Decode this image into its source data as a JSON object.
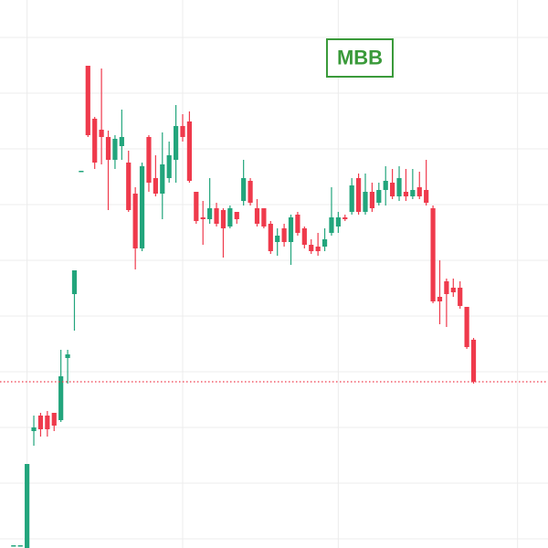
{
  "chart_data": {
    "type": "candlestick",
    "title": "MBB",
    "title_color": "#3a9a3a",
    "up_color": "#22a57c",
    "down_color": "#ef3a4c",
    "grid": true,
    "ylim": [
      0,
      600
    ],
    "yticks": [
      10,
      71,
      132,
      193,
      254,
      315,
      376,
      437,
      498,
      559
    ],
    "xlim": [
      -2,
      79
    ],
    "xticks": [
      2,
      25,
      48,
      74.5
    ],
    "last_price": 182,
    "x": [
      0,
      1,
      2,
      3,
      4,
      5,
      6,
      7,
      8,
      9,
      10,
      11,
      12,
      13,
      14,
      15,
      16,
      17,
      18,
      19,
      20,
      21,
      22,
      23,
      24,
      25,
      26,
      27,
      28,
      29,
      30,
      31,
      32,
      33,
      34,
      35,
      36,
      37,
      38,
      39,
      40,
      41,
      42,
      43,
      44,
      45,
      46,
      47,
      48,
      49,
      50,
      51,
      52,
      53,
      54,
      55,
      56,
      57,
      58,
      59,
      60,
      61,
      62,
      63,
      64,
      65,
      66,
      67,
      68
    ],
    "open": [
      3,
      3,
      0,
      128,
      145,
      145,
      148,
      140,
      208,
      278,
      413,
      528,
      470,
      458,
      450,
      425,
      440,
      422,
      388,
      328,
      450,
      405,
      388,
      405,
      425,
      462,
      467,
      390,
      362,
      360,
      372,
      370,
      352,
      368,
      380,
      402,
      372,
      372,
      355,
      335,
      350,
      335,
      365,
      350,
      332,
      330,
      330,
      345,
      352,
      362,
      368,
      405,
      368,
      390,
      378,
      392,
      400,
      385,
      390,
      385,
      395,
      392,
      372,
      275,
      292,
      285,
      285,
      264,
      228
    ],
    "high": [
      3,
      3,
      92,
      145,
      148,
      150,
      148,
      217,
      217,
      304,
      413,
      528,
      472,
      525,
      457,
      452,
      480,
      435,
      395,
      422,
      452,
      430,
      455,
      445,
      485,
      475,
      478,
      390,
      380,
      405,
      378,
      372,
      375,
      368,
      425,
      405,
      382,
      372,
      358,
      350,
      355,
      365,
      368,
      352,
      338,
      345,
      350,
      395,
      368,
      365,
      405,
      410,
      410,
      400,
      400,
      418,
      415,
      418,
      415,
      415,
      412,
      425,
      375,
      315,
      295,
      295,
      292,
      264,
      230
    ],
    "low": [
      3,
      3,
      0,
      112,
      122,
      122,
      128,
      138,
      180,
      238,
      413,
      450,
      415,
      420,
      370,
      415,
      425,
      368,
      305,
      325,
      390,
      385,
      360,
      400,
      400,
      445,
      400,
      355,
      332,
      355,
      352,
      318,
      350,
      355,
      375,
      375,
      352,
      350,
      322,
      320,
      330,
      310,
      342,
      328,
      322,
      320,
      325,
      342,
      345,
      358,
      365,
      365,
      365,
      368,
      375,
      375,
      382,
      380,
      380,
      382,
      382,
      375,
      268,
      245,
      242,
      275,
      262,
      218,
      180
    ],
    "close": [
      3,
      3,
      92,
      132,
      130,
      130,
      134,
      188,
      212,
      304,
      413,
      452,
      422,
      450,
      425,
      448,
      450,
      370,
      328,
      418,
      400,
      388,
      420,
      430,
      462,
      450,
      402,
      358,
      360,
      372,
      355,
      350,
      372,
      360,
      405,
      378,
      355,
      352,
      325,
      342,
      335,
      362,
      345,
      332,
      325,
      325,
      338,
      362,
      362,
      360,
      397,
      368,
      390,
      372,
      392,
      402,
      385,
      405,
      385,
      392,
      385,
      378,
      270,
      270,
      278,
      280,
      265,
      220,
      182
    ]
  }
}
